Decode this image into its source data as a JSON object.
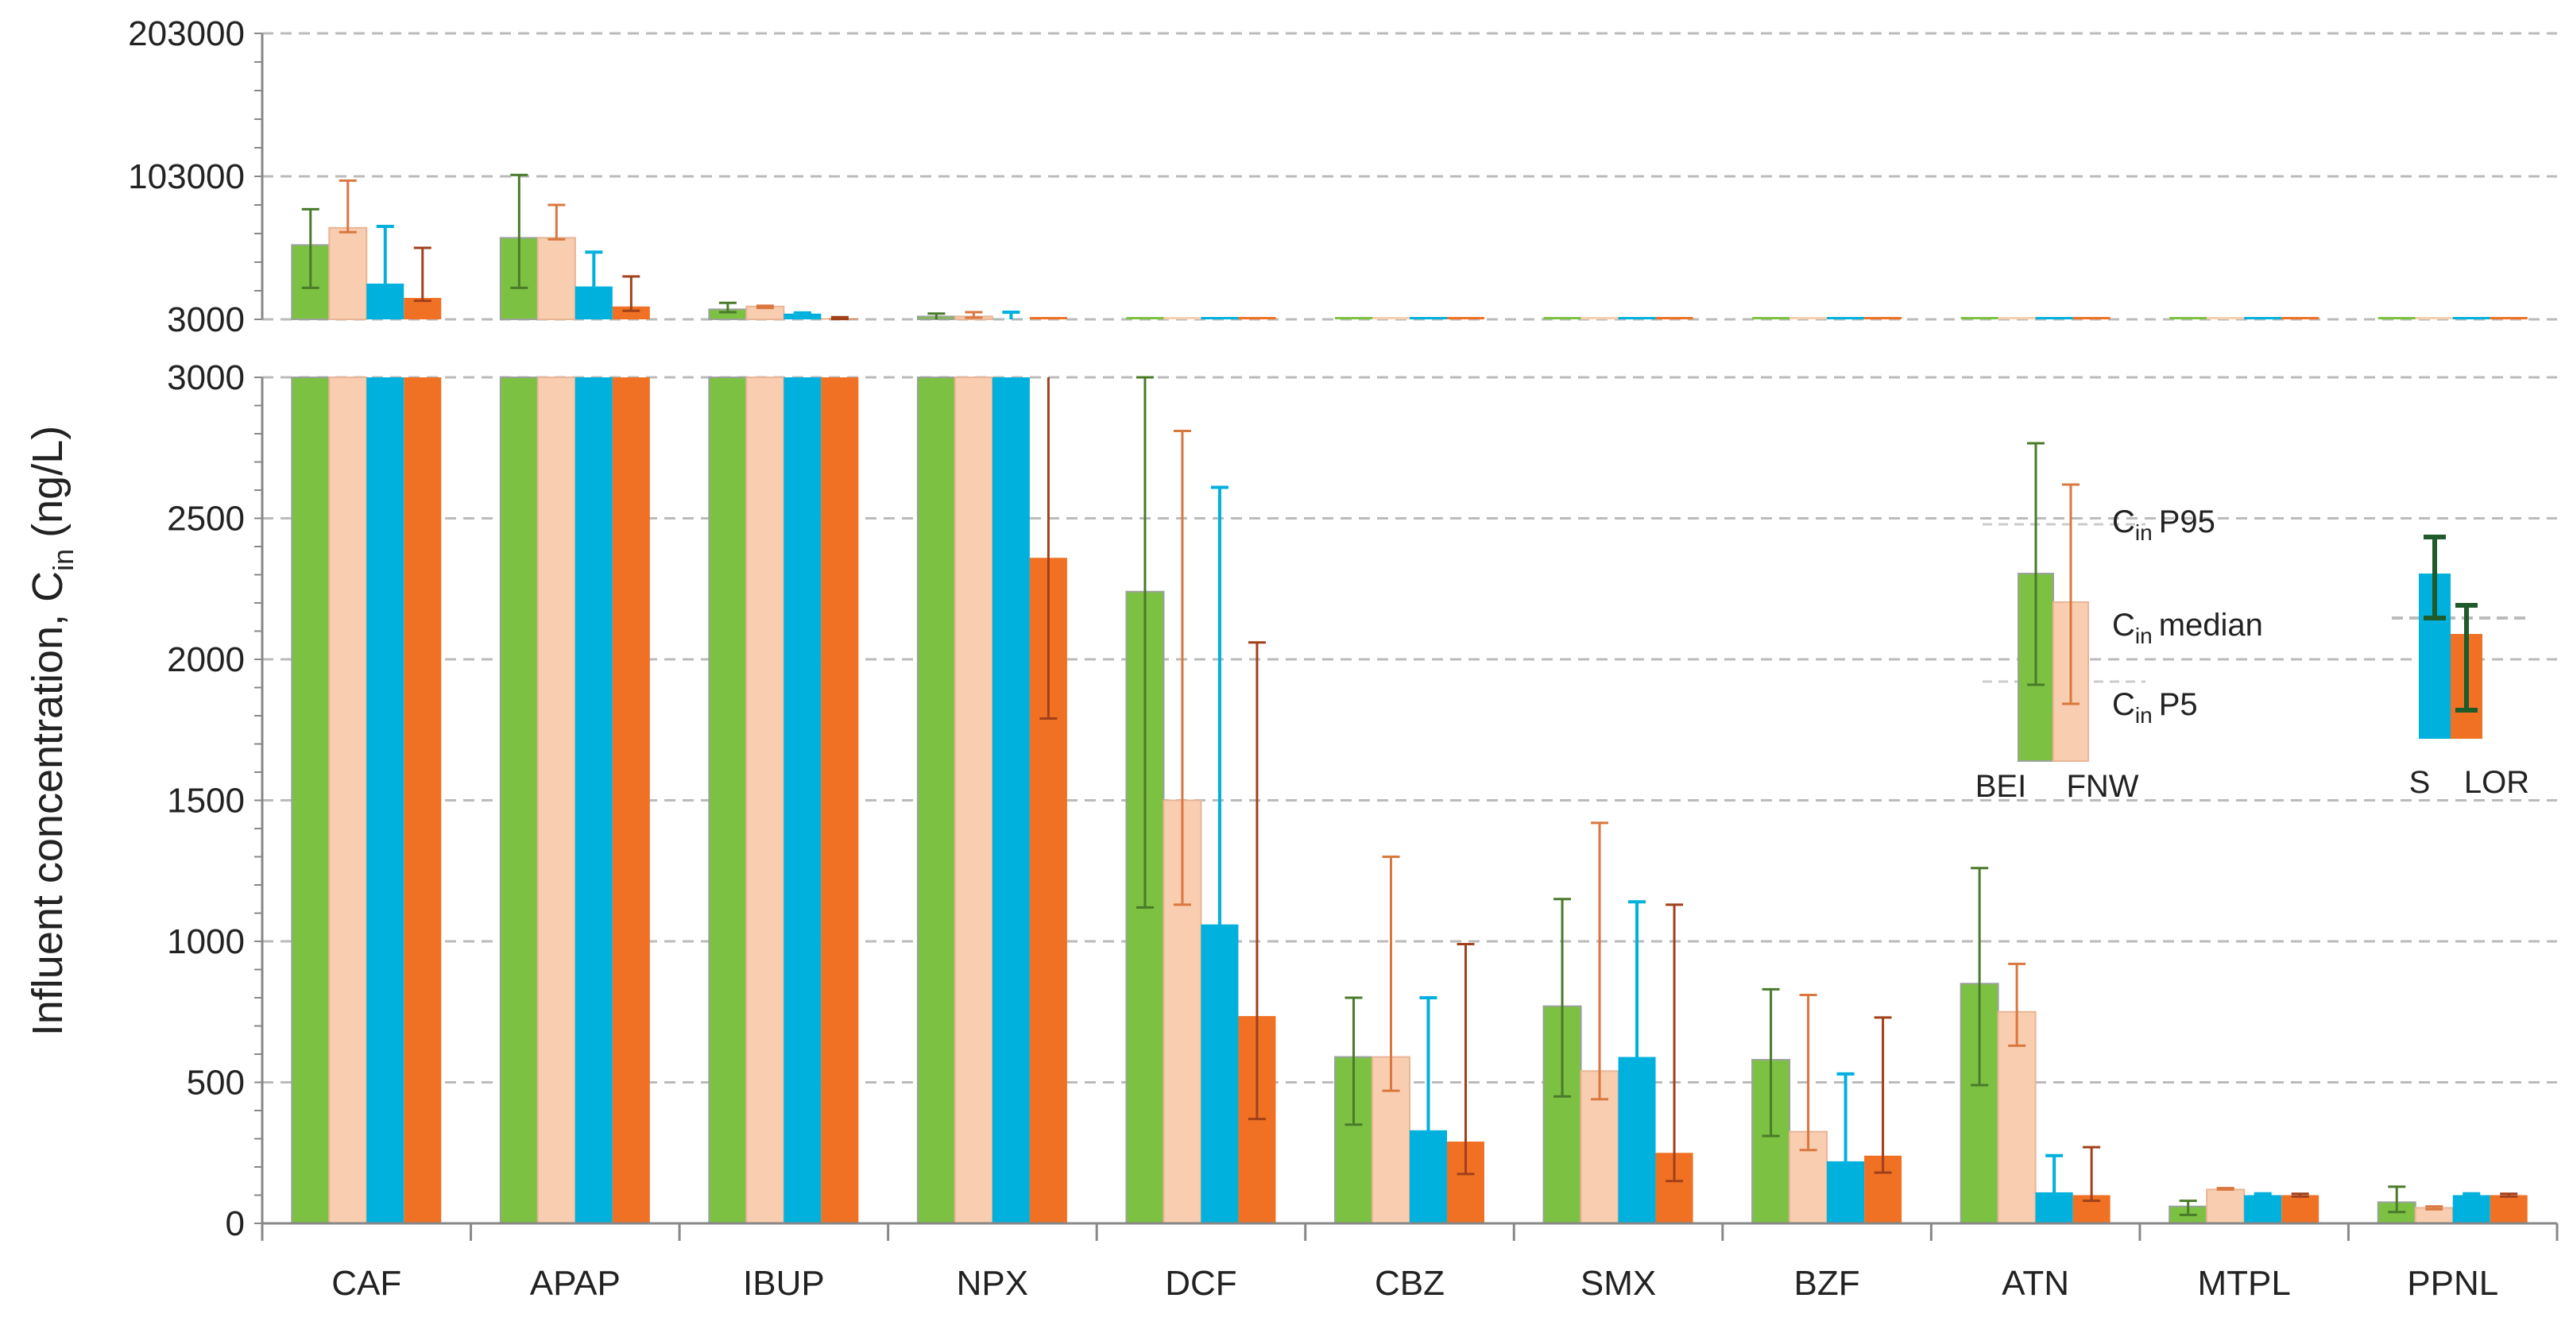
{
  "chart_data": {
    "type": "bar",
    "ylabel": "Influent concentration, C",
    "ylabel_subscript": "in",
    "ylabel_unit": "(ng/L)",
    "categories": [
      "CAF",
      "APAP",
      "IBUP",
      "NPX",
      "DCF",
      "CBZ",
      "SMX",
      "BZF",
      "ATN",
      "MTPL",
      "PPNL"
    ],
    "axis_break": {
      "upper": {
        "ylim": [
          3000,
          203000
        ],
        "ticks": [
          "203000",
          "103000",
          "3000"
        ]
      },
      "lower": {
        "ylim": [
          0,
          3000
        ],
        "ticks": [
          "3000",
          "2500",
          "2000",
          "1500",
          "1000",
          "500",
          "0"
        ]
      }
    },
    "grid": true,
    "series": [
      {
        "name": "BEI",
        "color": "#7dc142",
        "error_color": "#4a7a2a",
        "values": [
          55000,
          60000,
          10000,
          5000,
          2240,
          590,
          770,
          580,
          850,
          60,
          75
        ],
        "p5": [
          25000,
          25000,
          8000,
          2690,
          1120,
          350,
          450,
          310,
          490,
          30,
          40
        ],
        "p95": [
          80000,
          104000,
          14500,
          7000,
          3000,
          800,
          1150,
          830,
          1260,
          80,
          130
        ]
      },
      {
        "name": "FNW",
        "color": "#f9cdb0",
        "error_color": "#d9773e",
        "values": [
          67000,
          60000,
          12000,
          5000,
          1500,
          590,
          540,
          325,
          750,
          120,
          55
        ],
        "p5": [
          64000,
          59000,
          11000,
          4200,
          1130,
          470,
          440,
          260,
          630,
          120,
          50
        ],
        "p95": [
          100000,
          83000,
          12500,
          8000,
          2810,
          1300,
          1420,
          810,
          920,
          125,
          60
        ]
      },
      {
        "name": "S",
        "color": "#00b0dd",
        "error_color": "#00b0dd",
        "values": [
          28000,
          26000,
          7000,
          3100,
          1060,
          330,
          590,
          220,
          110,
          100,
          100
        ],
        "p5": [
          24000,
          22000,
          6500,
          2800,
          1000,
          300,
          500,
          200,
          80,
          95,
          95
        ],
        "p95": [
          68000,
          50000,
          7500,
          8000,
          2610,
          800,
          1140,
          530,
          240,
          105,
          105
        ]
      },
      {
        "name": "LOR",
        "color": "#f07124",
        "error_color": "#a0401a",
        "values": [
          18000,
          12000,
          3500,
          2360,
          735,
          290,
          250,
          240,
          100,
          100,
          100
        ],
        "p5": [
          16000,
          9000,
          3200,
          1790,
          370,
          175,
          150,
          180,
          80,
          95,
          95
        ],
        "p95": [
          53000,
          33000,
          4500,
          8500,
          2060,
          990,
          1130,
          730,
          270,
          105,
          105
        ]
      }
    ],
    "legend": {
      "p95_label": "C",
      "median_label": "C",
      "p5_label": "C",
      "sub": "in",
      "p95_suffix": "P95",
      "median_suffix": "median",
      "p5_suffix": "P5",
      "left_pair": [
        "BEI",
        "FNW"
      ],
      "right_pair": [
        "S",
        "LOR"
      ],
      "placement": "inside-right"
    }
  }
}
